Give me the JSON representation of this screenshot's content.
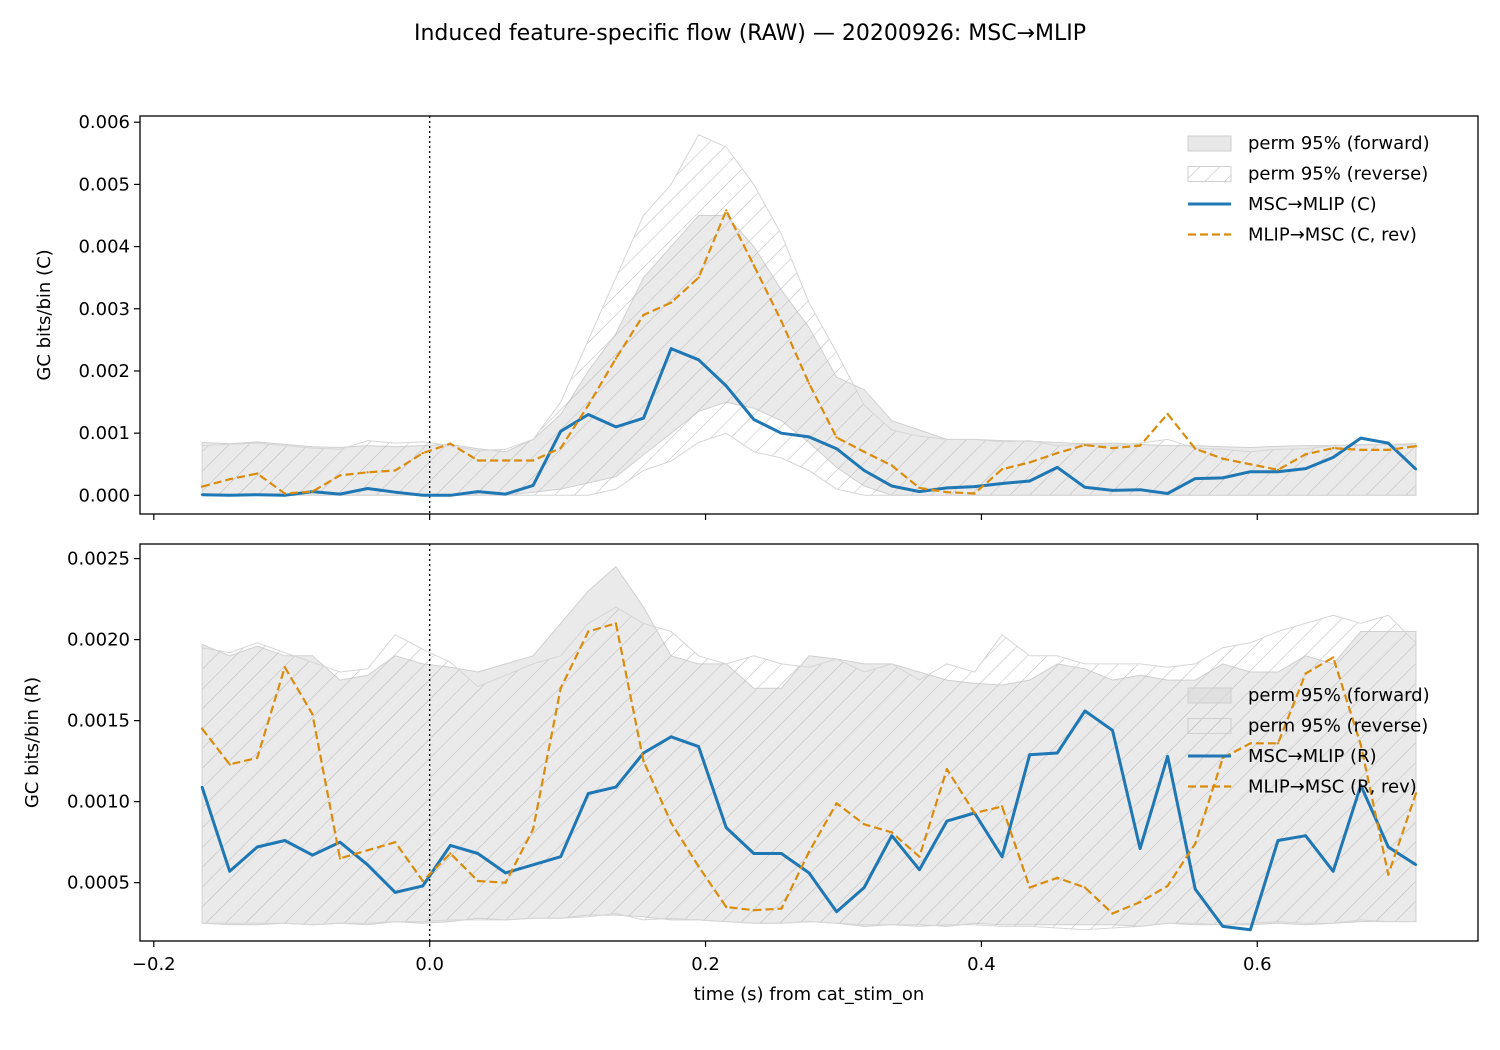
{
  "figure": {
    "title": "Induced feature-specific flow (RAW) — 20200926: MSC→MLIP",
    "xlabel": "time (s) from cat_stim_on"
  },
  "colors": {
    "forward": "#1f77b4",
    "reverse": "#d98c0d",
    "band_fill": "#d9d9d9",
    "band_hatch": "#bdbdbd",
    "vline": "#000000"
  },
  "chart_data": [
    {
      "type": "line",
      "panel": "top",
      "ylabel": "GC bits/bin (C)",
      "xlim": [
        -0.21,
        0.76
      ],
      "ylim": [
        -0.0003,
        0.0061
      ],
      "xticks": [
        -0.2,
        0.0,
        0.2,
        0.4,
        0.6
      ],
      "xtick_labels": [
        "",
        "",
        "",
        "",
        ""
      ],
      "yticks": [
        0.0,
        0.001,
        0.002,
        0.003,
        0.004,
        0.005,
        0.006
      ],
      "ytick_labels": [
        "0.000",
        "0.001",
        "0.002",
        "0.003",
        "0.004",
        "0.005",
        "0.006"
      ],
      "vline_x": 0.0,
      "legend_position": "top-right",
      "x": [
        -0.165,
        -0.145,
        -0.125,
        -0.105,
        -0.085,
        -0.065,
        -0.045,
        -0.025,
        -0.005,
        0.015,
        0.035,
        0.055,
        0.075,
        0.095,
        0.115,
        0.135,
        0.155,
        0.175,
        0.195,
        0.215,
        0.235,
        0.255,
        0.275,
        0.295,
        0.315,
        0.335,
        0.355,
        0.375,
        0.395,
        0.415,
        0.435,
        0.455,
        0.475,
        0.495,
        0.515,
        0.535,
        0.555,
        0.575,
        0.595,
        0.615,
        0.635,
        0.655,
        0.675,
        0.695,
        0.715
      ],
      "bands": [
        {
          "name": "perm 95% (forward)",
          "style": "fill",
          "upper": [
            0.00085,
            0.00083,
            0.00086,
            0.00082,
            0.00078,
            0.00077,
            0.0008,
            0.00078,
            0.0008,
            0.00082,
            0.00075,
            0.0007,
            0.0009,
            0.0013,
            0.002,
            0.0026,
            0.0035,
            0.004,
            0.0045,
            0.0045,
            0.004,
            0.0033,
            0.0027,
            0.0019,
            0.0017,
            0.0012,
            0.00105,
            0.0009,
            0.0009,
            0.00088,
            0.00087,
            0.00085,
            0.00083,
            0.00084,
            0.00082,
            0.0008,
            0.0008,
            0.00078,
            0.00077,
            0.00079,
            0.0008,
            0.0008,
            0.00081,
            0.00082,
            0.00083
          ],
          "lower": [
            0.0,
            0.0,
            0.0,
            0.0,
            0.0,
            0.0,
            0.0,
            0.0,
            0.0,
            0.0,
            0.0,
            0.0,
            5e-05,
            0.0001,
            0.0002,
            0.0003,
            0.00065,
            0.001,
            0.00135,
            0.0015,
            0.0014,
            0.0012,
            0.00085,
            0.00045,
            0.00015,
            0.0,
            0.0,
            0.0,
            0.0,
            0.0,
            0.0,
            0.0,
            0.0,
            0.0,
            0.0,
            0.0,
            0.0,
            0.0,
            0.0,
            0.0,
            0.0,
            0.0,
            0.0,
            0.0,
            0.0
          ]
        },
        {
          "name": "perm 95% (reverse)",
          "style": "hatch",
          "upper": [
            0.0008,
            0.00082,
            0.00084,
            0.0008,
            0.00076,
            0.00074,
            0.00088,
            0.00084,
            0.00086,
            0.0008,
            0.00072,
            0.00074,
            0.0009,
            0.0015,
            0.0025,
            0.0035,
            0.0045,
            0.005,
            0.0058,
            0.0056,
            0.005,
            0.0042,
            0.0031,
            0.0023,
            0.00145,
            0.00105,
            0.00095,
            0.0009,
            0.0009,
            0.00086,
            0.00088,
            0.0008,
            0.00082,
            0.0008,
            0.00084,
            0.0009,
            0.00076,
            0.00074,
            0.0007,
            0.00074,
            0.00075,
            0.0008,
            0.00082,
            0.00082,
            0.0008
          ],
          "lower": [
            0.0,
            0.0,
            0.0,
            0.0,
            0.0,
            0.0,
            0.0,
            0.0,
            0.0,
            0.0,
            0.0,
            0.0,
            0.0,
            0.0,
            0.0,
            0.0001,
            0.0004,
            0.00055,
            0.00085,
            0.001,
            0.0007,
            0.0006,
            0.0004,
            0.0001,
            0.0,
            0.0,
            0.0,
            0.0,
            0.0,
            0.0,
            0.0,
            0.0,
            0.0,
            0.0,
            0.0,
            0.0,
            0.0,
            0.0,
            0.0,
            0.0,
            0.0,
            0.0,
            0.0,
            0.0,
            0.0
          ]
        }
      ],
      "series": [
        {
          "name": "MSC→MLIP (C)",
          "style": "solid",
          "values": [
            1e-05,
            0.0,
            1e-05,
            0.0,
            6e-05,
            2e-05,
            0.00011,
            5e-05,
            0.0,
            0.0,
            6e-05,
            2e-05,
            0.00016,
            0.00103,
            0.0013,
            0.0011,
            0.00124,
            0.00236,
            0.00218,
            0.00176,
            0.00122,
            0.001,
            0.00094,
            0.00075,
            0.0004,
            0.00015,
            6e-05,
            0.00012,
            0.00014,
            0.00019,
            0.00023,
            0.00045,
            0.00013,
            8e-05,
            9e-05,
            3e-05,
            0.00027,
            0.00028,
            0.00038,
            0.00038,
            0.00043,
            0.00061,
            0.00092,
            0.00084,
            0.00042
          ]
        },
        {
          "name": "MLIP→MSC (C, rev)",
          "style": "dashed",
          "values": [
            0.00014,
            0.00026,
            0.00035,
            3e-05,
            6e-05,
            0.00032,
            0.00037,
            0.0004,
            0.00068,
            0.00083,
            0.00056,
            0.00056,
            0.00056,
            0.00076,
            0.00145,
            0.0022,
            0.0029,
            0.0031,
            0.0035,
            0.00458,
            0.0037,
            0.0028,
            0.0018,
            0.00093,
            0.0007,
            0.00048,
            0.00012,
            5e-05,
            3e-05,
            0.00042,
            0.00053,
            0.00068,
            0.00081,
            0.00076,
            0.0008,
            0.00131,
            0.00075,
            0.00059,
            0.0005,
            0.00041,
            0.00066,
            0.00076,
            0.00073,
            0.00073,
            0.00079
          ]
        }
      ]
    },
    {
      "type": "line",
      "panel": "bottom",
      "ylabel": "GC bits/bin (R)",
      "xlim": [
        -0.21,
        0.76
      ],
      "ylim": [
        0.00014,
        0.00259
      ],
      "xticks": [
        -0.2,
        0.0,
        0.2,
        0.4,
        0.6
      ],
      "xtick_labels": [
        "−0.2",
        "0.0",
        "0.2",
        "0.4",
        "0.6"
      ],
      "yticks": [
        0.0005,
        0.001,
        0.0015,
        0.002,
        0.0025
      ],
      "ytick_labels": [
        "0.0005",
        "0.0010",
        "0.0015",
        "0.0020",
        "0.0025"
      ],
      "vline_x": 0.0,
      "legend_position": "center-right",
      "x": [
        -0.165,
        -0.145,
        -0.125,
        -0.105,
        -0.085,
        -0.065,
        -0.045,
        -0.025,
        -0.005,
        0.015,
        0.035,
        0.055,
        0.075,
        0.095,
        0.115,
        0.135,
        0.155,
        0.175,
        0.195,
        0.215,
        0.235,
        0.255,
        0.275,
        0.295,
        0.315,
        0.335,
        0.355,
        0.375,
        0.395,
        0.415,
        0.435,
        0.455,
        0.475,
        0.495,
        0.515,
        0.535,
        0.555,
        0.575,
        0.595,
        0.615,
        0.635,
        0.655,
        0.675,
        0.695,
        0.715
      ],
      "bands": [
        {
          "name": "perm 95% (forward)",
          "style": "fill",
          "upper": [
            0.00197,
            0.0019,
            0.00196,
            0.0019,
            0.0019,
            0.00175,
            0.00178,
            0.0019,
            0.00185,
            0.00183,
            0.0018,
            0.00185,
            0.0019,
            0.0021,
            0.0023,
            0.00245,
            0.0022,
            0.0019,
            0.00185,
            0.00185,
            0.0017,
            0.0017,
            0.0019,
            0.00188,
            0.00185,
            0.00185,
            0.0018,
            0.00175,
            0.00173,
            0.00172,
            0.00175,
            0.00185,
            0.00182,
            0.00175,
            0.00178,
            0.00175,
            0.00175,
            0.00185,
            0.0018,
            0.0018,
            0.0019,
            0.00185,
            0.00205,
            0.00205,
            0.00205
          ],
          "lower": [
            0.00025,
            0.00024,
            0.00024,
            0.00025,
            0.00024,
            0.00025,
            0.00024,
            0.00026,
            0.00025,
            0.00026,
            0.00028,
            0.00027,
            0.00028,
            0.00028,
            0.0003,
            0.0003,
            0.00029,
            0.00027,
            0.00027,
            0.00026,
            0.00025,
            0.00025,
            0.00026,
            0.00025,
            0.00023,
            0.00024,
            0.00024,
            0.00023,
            0.00025,
            0.00024,
            0.00024,
            0.00024,
            0.00024,
            0.00024,
            0.00023,
            0.00025,
            0.00024,
            0.00024,
            0.00024,
            0.00025,
            0.00024,
            0.00025,
            0.00026,
            0.00026,
            0.00026
          ]
        },
        {
          "name": "perm 95% (reverse)",
          "style": "hatch",
          "upper": [
            0.00195,
            0.00192,
            0.00198,
            0.00192,
            0.00186,
            0.0018,
            0.00182,
            0.00203,
            0.00194,
            0.00186,
            0.00171,
            0.00178,
            0.00185,
            0.0019,
            0.0021,
            0.0022,
            0.0021,
            0.00205,
            0.0019,
            0.00185,
            0.0019,
            0.00185,
            0.00183,
            0.00188,
            0.0018,
            0.00185,
            0.00175,
            0.00185,
            0.0018,
            0.00203,
            0.0019,
            0.0019,
            0.00185,
            0.00185,
            0.00185,
            0.00183,
            0.00185,
            0.00195,
            0.00198,
            0.00205,
            0.0021,
            0.00215,
            0.0021,
            0.00215,
            0.00198
          ],
          "lower": [
            0.00025,
            0.00025,
            0.00025,
            0.00025,
            0.00024,
            0.00025,
            0.00025,
            0.00026,
            0.00026,
            0.00027,
            0.00027,
            0.00027,
            0.00028,
            0.00028,
            0.00029,
            0.00031,
            0.00027,
            0.00028,
            0.00027,
            0.00026,
            0.00025,
            0.00025,
            0.00026,
            0.00025,
            0.00024,
            0.00024,
            0.00023,
            0.00024,
            0.00024,
            0.00023,
            0.00023,
            0.00022,
            0.00021,
            0.00022,
            0.00023,
            0.00025,
            0.00025,
            0.00024,
            0.00025,
            0.00026,
            0.00025,
            0.00025,
            0.00027,
            0.00026,
            0.00026
          ]
        }
      ],
      "series": [
        {
          "name": "MSC→MLIP (R)",
          "style": "solid",
          "values": [
            0.00109,
            0.00057,
            0.00072,
            0.00076,
            0.00067,
            0.00075,
            0.00061,
            0.00044,
            0.00048,
            0.00073,
            0.00068,
            0.00056,
            0.00061,
            0.00066,
            0.00105,
            0.00109,
            0.0013,
            0.0014,
            0.00134,
            0.00084,
            0.00068,
            0.00068,
            0.00056,
            0.00032,
            0.00047,
            0.00079,
            0.00058,
            0.00088,
            0.00093,
            0.00066,
            0.00129,
            0.0013,
            0.00156,
            0.00144,
            0.00071,
            0.00128,
            0.00046,
            0.00023,
            0.00021,
            0.00076,
            0.00079,
            0.00057,
            0.0011,
            0.00072,
            0.00061
          ]
        },
        {
          "name": "MLIP→MSC (R, rev)",
          "style": "dashed",
          "values": [
            0.00145,
            0.00123,
            0.00127,
            0.00183,
            0.00154,
            0.00065,
            0.0007,
            0.00075,
            0.00051,
            0.00068,
            0.00051,
            0.0005,
            0.00083,
            0.0017,
            0.00205,
            0.0021,
            0.00125,
            0.00087,
            0.0006,
            0.00035,
            0.00033,
            0.00034,
            0.00069,
            0.00099,
            0.00086,
            0.00081,
            0.00066,
            0.0012,
            0.00093,
            0.00097,
            0.00047,
            0.00053,
            0.00047,
            0.00031,
            0.00038,
            0.00048,
            0.00074,
            0.00127,
            0.00136,
            0.00136,
            0.00179,
            0.00189,
            0.00135,
            0.00055,
            0.00105
          ]
        }
      ]
    }
  ]
}
